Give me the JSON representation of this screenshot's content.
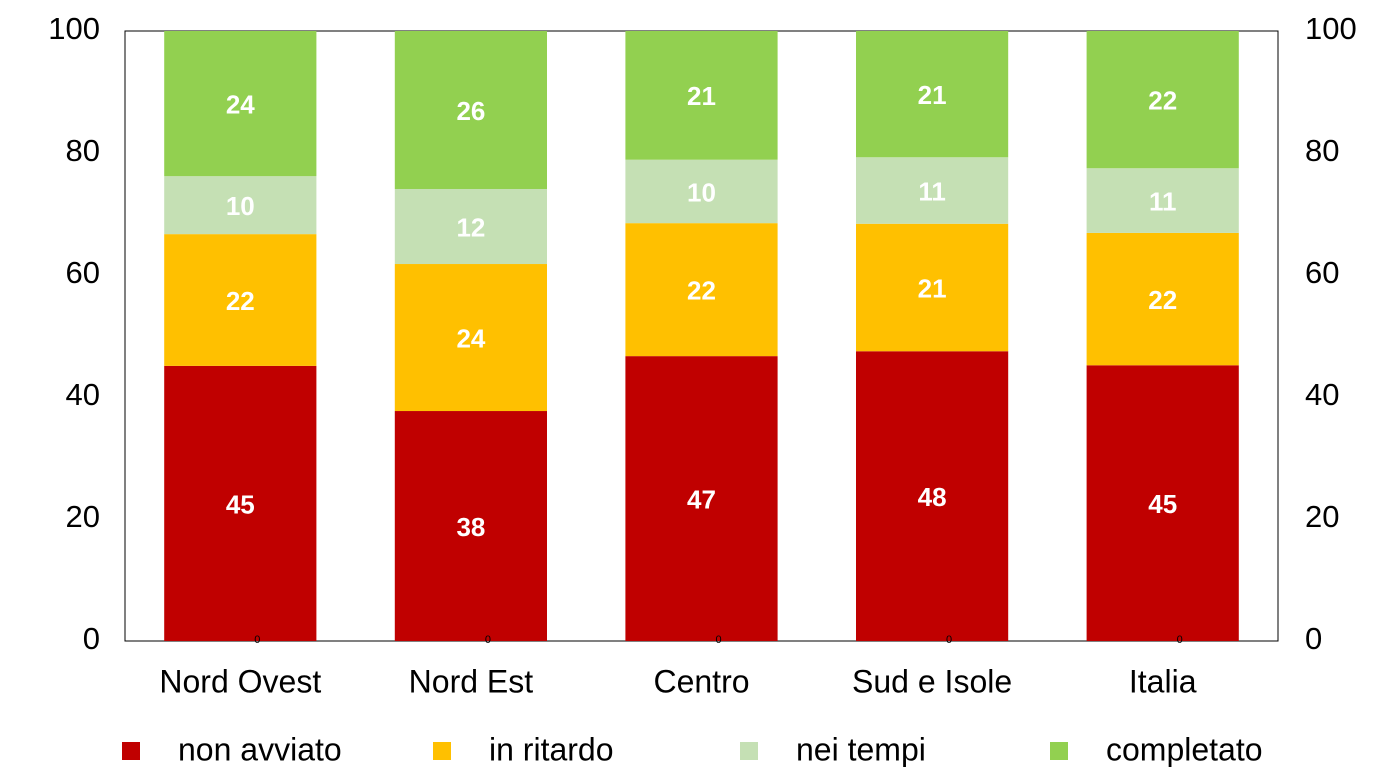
{
  "chart_data": {
    "type": "stacked_bar",
    "categories": [
      "Nord Ovest",
      "Nord Est",
      "Centro",
      "Sud e Isole",
      "Italia"
    ],
    "series": [
      {
        "name": "non avviato",
        "color": "#c00000",
        "values": [
          45.1,
          37.7,
          46.7,
          47.5,
          45.2
        ],
        "value_labels": [
          "45",
          "38",
          "47",
          "48",
          "45"
        ]
      },
      {
        "name": "in ritardo",
        "color": "#ffc000",
        "values": [
          21.6,
          24.1,
          21.8,
          20.9,
          21.7
        ],
        "value_labels": [
          "22",
          "24",
          "22",
          "21",
          "22"
        ]
      },
      {
        "name": "nei tempi",
        "color": "#c5e0b4",
        "values": [
          9.5,
          12.3,
          10.4,
          10.9,
          10.6
        ],
        "value_labels": [
          "10",
          "12",
          "10",
          "11",
          "11"
        ]
      },
      {
        "name": "completato",
        "color": "#92d050",
        "values": [
          23.8,
          25.9,
          21.1,
          20.7,
          22.5
        ],
        "value_labels": [
          "24",
          "26",
          "21",
          "21",
          "22"
        ]
      },
      {
        "values": [
          0,
          0,
          0,
          0,
          0
        ]
      }
    ],
    "ylim": [
      0,
      100
    ],
    "yticks": [
      0,
      20,
      40,
      60,
      80,
      100
    ],
    "y2lim": [
      0,
      100
    ],
    "y2ticks": [
      0,
      20,
      40,
      60,
      80,
      100
    ],
    "legend": "bottom"
  }
}
